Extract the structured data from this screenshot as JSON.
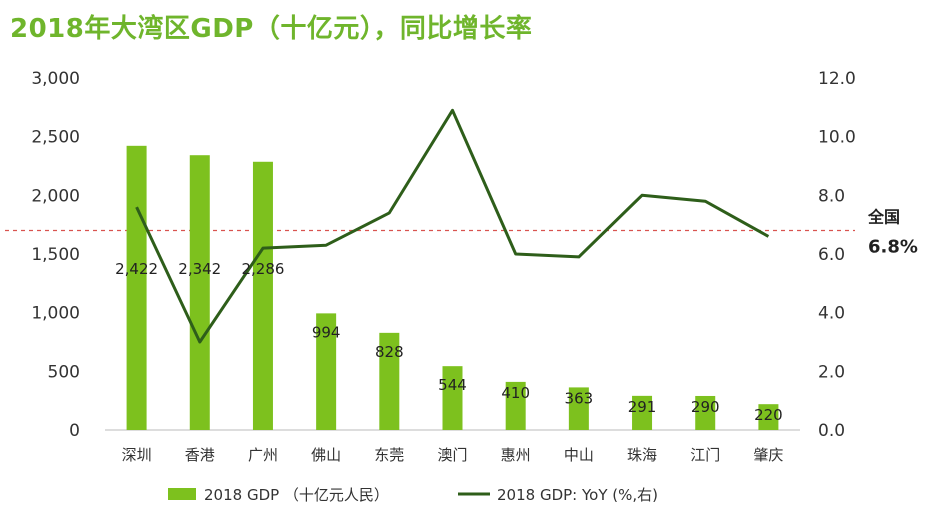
{
  "title": "2018年大湾区GDP（十亿元），同比增长率",
  "colors": {
    "bar": "#7dc11e",
    "line": "#2e5e1a",
    "reference": "#d9534f",
    "title": "#6fb52c"
  },
  "chart_data": {
    "type": "bar+line",
    "categories": [
      "深圳",
      "香港",
      "广州",
      "佛山",
      "东莞",
      "澳门",
      "惠州",
      "中山",
      "珠海",
      "江门",
      "肇庆"
    ],
    "series": [
      {
        "name": "2018 GDP （十亿元人民）",
        "type": "bar",
        "axis": "left",
        "values": [
          2422,
          2342,
          2286,
          994,
          828,
          544,
          410,
          363,
          291,
          290,
          220
        ],
        "labels": [
          "2,422",
          "2,342",
          "2,286",
          "994",
          "828",
          "544",
          "410",
          "363",
          "291",
          "290",
          "220"
        ]
      },
      {
        "name": "2018 GDP: YoY (%,右)",
        "type": "line",
        "axis": "right",
        "values": [
          7.6,
          3.0,
          6.2,
          6.3,
          7.4,
          10.9,
          6.0,
          5.9,
          8.0,
          7.8,
          6.6
        ]
      }
    ],
    "y_left": {
      "min": 0,
      "max": 3000,
      "ticks": [
        "0",
        "500",
        "1,000",
        "1,500",
        "2,000",
        "2,500",
        "3,000"
      ]
    },
    "y_right": {
      "min": 0,
      "max": 12,
      "ticks": [
        "0.0",
        "2.0",
        "4.0",
        "6.0",
        "8.0",
        "10.0",
        "12.0"
      ]
    },
    "reference": {
      "name": "全国",
      "value_label": "6.8%",
      "value": 6.8
    },
    "legend": [
      "2018 GDP （十亿元人民）",
      "2018 GDP: YoY (%,右)"
    ]
  }
}
